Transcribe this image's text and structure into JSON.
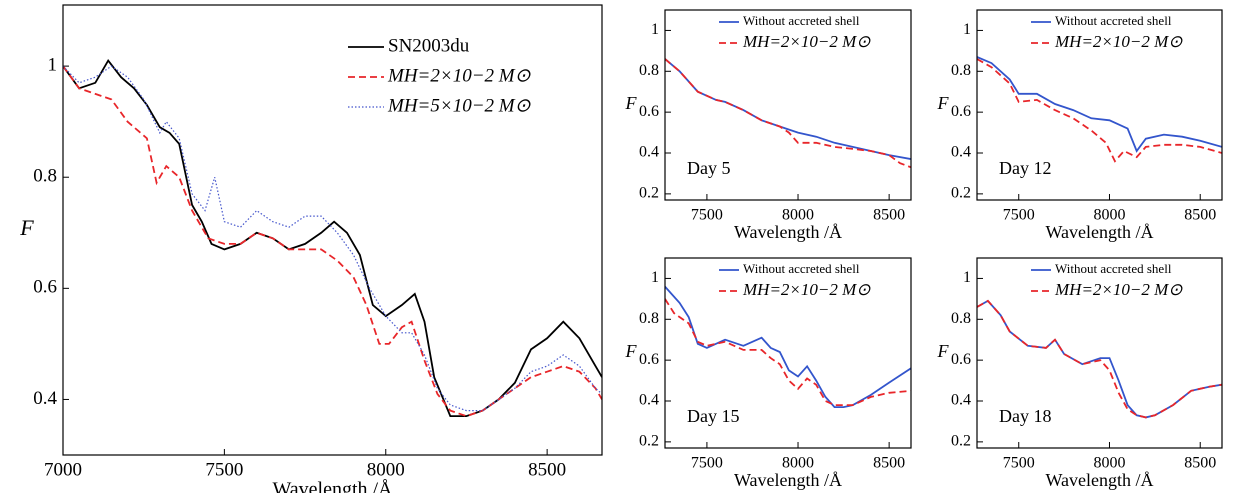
{
  "chart_data": [
    {
      "type": "line",
      "xlabel": "Wavelength /Å",
      "ylabel": "F",
      "xlim": [
        7000,
        8670
      ],
      "ylim": [
        0.3,
        1.11
      ],
      "xticks": [
        7000,
        7500,
        8000,
        8500
      ],
      "yticks": [
        0.4,
        0.6,
        0.8,
        1
      ],
      "legend": "upper right",
      "series": [
        {
          "name": "SN2003du",
          "color": "#000000",
          "dash": "solid",
          "x": [
            7000,
            7050,
            7100,
            7140,
            7180,
            7220,
            7260,
            7300,
            7330,
            7360,
            7400,
            7430,
            7460,
            7500,
            7550,
            7600,
            7650,
            7700,
            7750,
            7800,
            7840,
            7880,
            7920,
            7960,
            8000,
            8050,
            8090,
            8120,
            8150,
            8200,
            8250,
            8300,
            8350,
            8400,
            8450,
            8500,
            8550,
            8600,
            8650,
            8670
          ],
          "values": [
            1.0,
            0.96,
            0.97,
            1.01,
            0.98,
            0.96,
            0.93,
            0.89,
            0.88,
            0.86,
            0.75,
            0.72,
            0.68,
            0.67,
            0.68,
            0.7,
            0.69,
            0.67,
            0.68,
            0.7,
            0.72,
            0.7,
            0.66,
            0.57,
            0.55,
            0.57,
            0.59,
            0.54,
            0.44,
            0.37,
            0.37,
            0.38,
            0.4,
            0.43,
            0.49,
            0.51,
            0.54,
            0.51,
            0.46,
            0.44
          ]
        },
        {
          "name": "MH=2×10−2 M⊙",
          "color": "#e8262a",
          "dash": "dashed",
          "x": [
            7000,
            7050,
            7100,
            7150,
            7200,
            7260,
            7290,
            7320,
            7360,
            7400,
            7450,
            7500,
            7550,
            7600,
            7650,
            7700,
            7750,
            7800,
            7850,
            7900,
            7940,
            7980,
            8010,
            8050,
            8080,
            8120,
            8160,
            8200,
            8250,
            8300,
            8350,
            8400,
            8450,
            8500,
            8550,
            8600,
            8650,
            8670
          ],
          "values": [
            1.0,
            0.96,
            0.95,
            0.94,
            0.9,
            0.87,
            0.79,
            0.82,
            0.8,
            0.74,
            0.69,
            0.68,
            0.68,
            0.7,
            0.69,
            0.67,
            0.67,
            0.67,
            0.65,
            0.62,
            0.57,
            0.5,
            0.5,
            0.53,
            0.54,
            0.47,
            0.41,
            0.38,
            0.37,
            0.38,
            0.4,
            0.42,
            0.44,
            0.45,
            0.46,
            0.45,
            0.42,
            0.4
          ]
        },
        {
          "name": "MH=5×10−2 M⊙",
          "color": "#4455cc",
          "dash": "dotted",
          "x": [
            7000,
            7050,
            7100,
            7150,
            7200,
            7250,
            7300,
            7320,
            7360,
            7400,
            7440,
            7470,
            7500,
            7550,
            7600,
            7650,
            7700,
            7750,
            7800,
            7850,
            7900,
            7950,
            8000,
            8050,
            8080,
            8120,
            8160,
            8200,
            8250,
            8300,
            8350,
            8400,
            8450,
            8500,
            8550,
            8600,
            8650,
            8670
          ],
          "values": [
            1.0,
            0.97,
            0.98,
            1.0,
            0.98,
            0.94,
            0.88,
            0.9,
            0.87,
            0.77,
            0.74,
            0.8,
            0.72,
            0.71,
            0.74,
            0.72,
            0.71,
            0.73,
            0.73,
            0.7,
            0.66,
            0.6,
            0.55,
            0.52,
            0.52,
            0.48,
            0.42,
            0.39,
            0.38,
            0.38,
            0.4,
            0.42,
            0.45,
            0.46,
            0.48,
            0.46,
            0.42,
            0.41
          ]
        }
      ]
    },
    {
      "type": "line",
      "xlabel": "Wavelength /Å",
      "ylabel": "F",
      "annotation": "Day 5",
      "xlim": [
        7270,
        8620
      ],
      "ylim": [
        0.17,
        1.1
      ],
      "xticks": [
        7500,
        8000,
        8500
      ],
      "yticks": [
        0.2,
        0.4,
        0.6,
        0.8,
        1
      ],
      "legend": "upper right",
      "series": [
        {
          "name": "Without accreted shell",
          "color": "#3355cc",
          "dash": "solid",
          "x": [
            7270,
            7350,
            7450,
            7550,
            7600,
            7700,
            7800,
            7900,
            8000,
            8100,
            8200,
            8300,
            8400,
            8500,
            8620
          ],
          "values": [
            0.86,
            0.8,
            0.7,
            0.66,
            0.65,
            0.61,
            0.56,
            0.53,
            0.5,
            0.48,
            0.45,
            0.43,
            0.41,
            0.39,
            0.37
          ]
        },
        {
          "name": "MH=2×10−2 M⊙",
          "color": "#e8262a",
          "dash": "dashed",
          "x": [
            7270,
            7350,
            7450,
            7550,
            7600,
            7700,
            7800,
            7900,
            7950,
            8000,
            8100,
            8200,
            8300,
            8400,
            8500,
            8560,
            8620
          ],
          "values": [
            0.86,
            0.8,
            0.7,
            0.66,
            0.65,
            0.61,
            0.56,
            0.53,
            0.5,
            0.45,
            0.45,
            0.43,
            0.42,
            0.41,
            0.39,
            0.35,
            0.33
          ]
        }
      ]
    },
    {
      "type": "line",
      "xlabel": "Wavelength /Å",
      "ylabel": "F",
      "annotation": "Day 12",
      "xlim": [
        7270,
        8620
      ],
      "ylim": [
        0.17,
        1.1
      ],
      "xticks": [
        7500,
        8000,
        8500
      ],
      "yticks": [
        0.2,
        0.4,
        0.6,
        0.8,
        1
      ],
      "legend": "upper right",
      "series": [
        {
          "name": "Without accreted shell",
          "color": "#3355cc",
          "dash": "solid",
          "x": [
            7270,
            7350,
            7450,
            7500,
            7600,
            7700,
            7800,
            7900,
            8000,
            8100,
            8150,
            8200,
            8300,
            8400,
            8500,
            8620
          ],
          "values": [
            0.87,
            0.84,
            0.76,
            0.69,
            0.69,
            0.64,
            0.61,
            0.57,
            0.56,
            0.52,
            0.41,
            0.47,
            0.49,
            0.48,
            0.46,
            0.43
          ]
        },
        {
          "name": "MH=2×10−2 M⊙",
          "color": "#e8262a",
          "dash": "dashed",
          "x": [
            7270,
            7350,
            7450,
            7500,
            7600,
            7700,
            7800,
            7900,
            7980,
            8030,
            8080,
            8150,
            8200,
            8300,
            8400,
            8500,
            8620
          ],
          "values": [
            0.86,
            0.82,
            0.74,
            0.65,
            0.66,
            0.61,
            0.57,
            0.51,
            0.45,
            0.36,
            0.41,
            0.38,
            0.43,
            0.44,
            0.44,
            0.43,
            0.4
          ]
        }
      ]
    },
    {
      "type": "line",
      "xlabel": "Wavelength /Å",
      "ylabel": "F",
      "annotation": "Day 15",
      "xlim": [
        7270,
        8620
      ],
      "ylim": [
        0.17,
        1.1
      ],
      "xticks": [
        7500,
        8000,
        8500
      ],
      "yticks": [
        0.2,
        0.4,
        0.6,
        0.8,
        1
      ],
      "legend": "upper right",
      "series": [
        {
          "name": "Without accreted shell",
          "color": "#3355cc",
          "dash": "solid",
          "x": [
            7270,
            7350,
            7400,
            7450,
            7500,
            7600,
            7700,
            7800,
            7850,
            7900,
            7950,
            8000,
            8050,
            8100,
            8150,
            8200,
            8250,
            8300,
            8400,
            8500,
            8620
          ],
          "values": [
            0.96,
            0.88,
            0.81,
            0.68,
            0.66,
            0.7,
            0.67,
            0.71,
            0.66,
            0.64,
            0.55,
            0.52,
            0.57,
            0.5,
            0.42,
            0.37,
            0.37,
            0.38,
            0.43,
            0.49,
            0.56
          ]
        },
        {
          "name": "MH=2×10−2 M⊙",
          "color": "#e8262a",
          "dash": "dashed",
          "x": [
            7270,
            7320,
            7400,
            7450,
            7500,
            7600,
            7700,
            7800,
            7850,
            7900,
            7950,
            8000,
            8050,
            8100,
            8150,
            8200,
            8250,
            8300,
            8400,
            8500,
            8620
          ],
          "values": [
            0.9,
            0.83,
            0.78,
            0.69,
            0.67,
            0.69,
            0.65,
            0.65,
            0.61,
            0.58,
            0.5,
            0.46,
            0.51,
            0.48,
            0.4,
            0.38,
            0.38,
            0.38,
            0.42,
            0.44,
            0.45
          ]
        }
      ]
    },
    {
      "type": "line",
      "xlabel": "Wavelength /Å",
      "ylabel": "F",
      "annotation": "Day 18",
      "xlim": [
        7270,
        8620
      ],
      "ylim": [
        0.17,
        1.1
      ],
      "xticks": [
        7500,
        8000,
        8500
      ],
      "yticks": [
        0.2,
        0.4,
        0.6,
        0.8,
        1
      ],
      "legend": "upper right",
      "series": [
        {
          "name": "Without accreted shell",
          "color": "#3355cc",
          "dash": "solid",
          "x": [
            7270,
            7330,
            7400,
            7450,
            7550,
            7650,
            7700,
            7750,
            7850,
            7950,
            8000,
            8050,
            8100,
            8150,
            8200,
            8250,
            8350,
            8450,
            8550,
            8620
          ],
          "values": [
            0.86,
            0.89,
            0.82,
            0.74,
            0.67,
            0.66,
            0.7,
            0.63,
            0.58,
            0.61,
            0.61,
            0.5,
            0.38,
            0.33,
            0.32,
            0.33,
            0.38,
            0.45,
            0.47,
            0.48
          ]
        },
        {
          "name": "MH=2×10−2 M⊙",
          "color": "#e8262a",
          "dash": "dashed",
          "x": [
            7270,
            7330,
            7400,
            7450,
            7550,
            7650,
            7700,
            7750,
            7850,
            7950,
            8000,
            8050,
            8100,
            8150,
            8200,
            8250,
            8350,
            8450,
            8550,
            8620
          ],
          "values": [
            0.86,
            0.89,
            0.82,
            0.74,
            0.67,
            0.66,
            0.7,
            0.63,
            0.58,
            0.6,
            0.55,
            0.44,
            0.36,
            0.33,
            0.32,
            0.33,
            0.38,
            0.45,
            0.47,
            0.48
          ]
        }
      ]
    }
  ]
}
